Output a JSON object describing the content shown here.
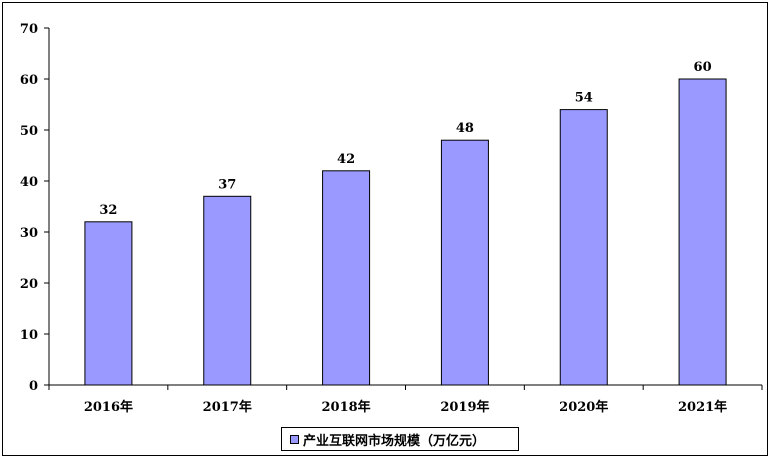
{
  "chart_data": {
    "type": "bar",
    "categories": [
      "2016年",
      "2017年",
      "2018年",
      "2019年",
      "2020年",
      "2021年"
    ],
    "series": [
      {
        "name": "产业互联网市场规模（万亿元）",
        "values": [
          32,
          37,
          42,
          48,
          54,
          60
        ],
        "color": "#9999ff"
      }
    ],
    "data_labels": [
      "32",
      "37",
      "42",
      "48",
      "54",
      "60"
    ],
    "ylim": [
      0,
      70
    ],
    "y_ticks": [
      "0",
      "10",
      "20",
      "30",
      "40",
      "50",
      "60",
      "70"
    ],
    "grid": false,
    "legend_position": "bottom"
  }
}
